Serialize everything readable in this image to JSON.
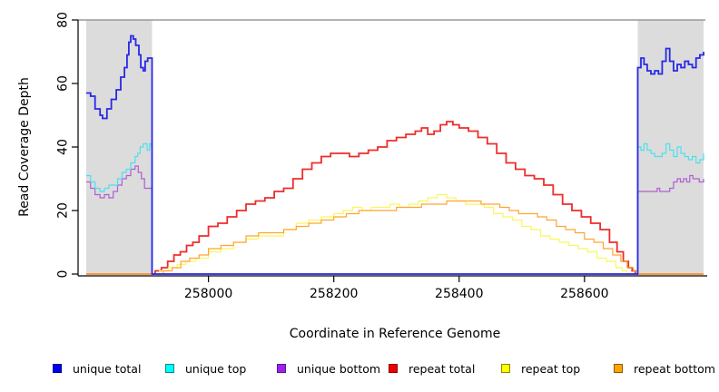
{
  "chart_data": {
    "type": "line",
    "title": "",
    "xlabel": "Coordinate in Reference Genome",
    "ylabel": "Read Coverage Depth",
    "xlim": [
      257805,
      258790
    ],
    "ylim": [
      0,
      80
    ],
    "x_ticks": [
      258000,
      258200,
      258400,
      258600
    ],
    "y_ticks": [
      0,
      20,
      40,
      60,
      80
    ],
    "grid": false,
    "legend_position": "bottom",
    "step_interpolation": true,
    "shaded_regions": [
      {
        "name": "left-masked-region",
        "x0": 257805,
        "x1": 257910,
        "color": "#dcdcdc"
      },
      {
        "name": "right-masked-region",
        "x0": 258685,
        "x1": 258790,
        "color": "#dcdcdc"
      }
    ],
    "top_boundary_line": {
      "y": 80,
      "color": "#9a9a9a"
    },
    "draw_order": [
      "repeat total",
      "repeat top",
      "repeat bottom",
      "unique bottom",
      "unique top",
      "unique total"
    ],
    "series": [
      {
        "name": "unique total",
        "color": "#2929e8",
        "width": 1.8,
        "points": [
          [
            257805,
            57
          ],
          [
            257812,
            56
          ],
          [
            257819,
            52
          ],
          [
            257827,
            50
          ],
          [
            257831,
            49
          ],
          [
            257838,
            52
          ],
          [
            257845,
            55
          ],
          [
            257853,
            58
          ],
          [
            257860,
            62
          ],
          [
            257866,
            65
          ],
          [
            257870,
            69
          ],
          [
            257873,
            73
          ],
          [
            257876,
            75
          ],
          [
            257880,
            74
          ],
          [
            257884,
            72
          ],
          [
            257889,
            69
          ],
          [
            257892,
            65
          ],
          [
            257896,
            64
          ],
          [
            257899,
            67
          ],
          [
            257903,
            68
          ],
          [
            257909,
            68
          ],
          [
            257910,
            0
          ],
          [
            258684,
            0
          ],
          [
            258685,
            65
          ],
          [
            258690,
            68
          ],
          [
            258695,
            66
          ],
          [
            258700,
            64
          ],
          [
            258706,
            63
          ],
          [
            258712,
            64
          ],
          [
            258718,
            63
          ],
          [
            258724,
            67
          ],
          [
            258730,
            71
          ],
          [
            258736,
            67
          ],
          [
            258742,
            64
          ],
          [
            258748,
            66
          ],
          [
            258754,
            65
          ],
          [
            258760,
            67
          ],
          [
            258766,
            66
          ],
          [
            258772,
            65
          ],
          [
            258778,
            68
          ],
          [
            258784,
            69
          ],
          [
            258790,
            70
          ]
        ]
      },
      {
        "name": "unique top",
        "color": "#4de0ee",
        "width": 1.2,
        "points": [
          [
            257805,
            31
          ],
          [
            257812,
            29
          ],
          [
            257819,
            27
          ],
          [
            257827,
            26
          ],
          [
            257834,
            27
          ],
          [
            257841,
            28
          ],
          [
            257848,
            28
          ],
          [
            257855,
            30
          ],
          [
            257862,
            32
          ],
          [
            257869,
            33
          ],
          [
            257876,
            35
          ],
          [
            257883,
            37
          ],
          [
            257887,
            38
          ],
          [
            257891,
            40
          ],
          [
            257896,
            41
          ],
          [
            257902,
            39
          ],
          [
            257906,
            41
          ],
          [
            257909,
            40
          ],
          [
            257910,
            0
          ],
          [
            258684,
            0
          ],
          [
            258685,
            40
          ],
          [
            258690,
            39
          ],
          [
            258695,
            41
          ],
          [
            258700,
            39
          ],
          [
            258706,
            38
          ],
          [
            258712,
            37
          ],
          [
            258718,
            37
          ],
          [
            258724,
            38
          ],
          [
            258730,
            41
          ],
          [
            258736,
            39
          ],
          [
            258742,
            37
          ],
          [
            258748,
            40
          ],
          [
            258754,
            38
          ],
          [
            258760,
            37
          ],
          [
            258766,
            36
          ],
          [
            258772,
            37
          ],
          [
            258778,
            35
          ],
          [
            258784,
            36
          ],
          [
            258790,
            38
          ]
        ]
      },
      {
        "name": "unique bottom",
        "color": "#ae5fd0",
        "width": 1.2,
        "points": [
          [
            257805,
            29
          ],
          [
            257812,
            27
          ],
          [
            257819,
            25
          ],
          [
            257827,
            24
          ],
          [
            257834,
            25
          ],
          [
            257841,
            24
          ],
          [
            257848,
            26
          ],
          [
            257855,
            28
          ],
          [
            257862,
            30
          ],
          [
            257869,
            31
          ],
          [
            257876,
            33
          ],
          [
            257883,
            34
          ],
          [
            257888,
            32
          ],
          [
            257893,
            30
          ],
          [
            257898,
            27
          ],
          [
            257909,
            27
          ],
          [
            257910,
            0
          ],
          [
            258684,
            0
          ],
          [
            258685,
            26
          ],
          [
            258700,
            26
          ],
          [
            258712,
            26
          ],
          [
            258716,
            27
          ],
          [
            258720,
            26
          ],
          [
            258730,
            26
          ],
          [
            258736,
            27
          ],
          [
            258742,
            29
          ],
          [
            258748,
            30
          ],
          [
            258753,
            29
          ],
          [
            258758,
            30
          ],
          [
            258763,
            29
          ],
          [
            258768,
            31
          ],
          [
            258773,
            30
          ],
          [
            258778,
            30
          ],
          [
            258783,
            29
          ],
          [
            258790,
            30
          ]
        ]
      },
      {
        "name": "repeat total",
        "color": "#ee2c2c",
        "width": 1.8,
        "points": [
          [
            257805,
            0
          ],
          [
            257910,
            0
          ],
          [
            257915,
            1
          ],
          [
            257925,
            2
          ],
          [
            257935,
            4
          ],
          [
            257945,
            6
          ],
          [
            257955,
            7
          ],
          [
            257965,
            9
          ],
          [
            257975,
            10
          ],
          [
            257985,
            12
          ],
          [
            258000,
            15
          ],
          [
            258015,
            16
          ],
          [
            258030,
            18
          ],
          [
            258045,
            20
          ],
          [
            258060,
            22
          ],
          [
            258075,
            23
          ],
          [
            258090,
            24
          ],
          [
            258105,
            26
          ],
          [
            258120,
            27
          ],
          [
            258135,
            30
          ],
          [
            258150,
            33
          ],
          [
            258165,
            35
          ],
          [
            258180,
            37
          ],
          [
            258195,
            38
          ],
          [
            258210,
            38
          ],
          [
            258225,
            37
          ],
          [
            258240,
            38
          ],
          [
            258255,
            39
          ],
          [
            258270,
            40
          ],
          [
            258285,
            42
          ],
          [
            258300,
            43
          ],
          [
            258315,
            44
          ],
          [
            258330,
            45
          ],
          [
            258340,
            46
          ],
          [
            258350,
            44
          ],
          [
            258360,
            45
          ],
          [
            258370,
            47
          ],
          [
            258380,
            48
          ],
          [
            258390,
            47
          ],
          [
            258400,
            46
          ],
          [
            258415,
            45
          ],
          [
            258430,
            43
          ],
          [
            258445,
            41
          ],
          [
            258460,
            38
          ],
          [
            258475,
            35
          ],
          [
            258490,
            33
          ],
          [
            258505,
            31
          ],
          [
            258520,
            30
          ],
          [
            258535,
            28
          ],
          [
            258550,
            25
          ],
          [
            258565,
            22
          ],
          [
            258580,
            20
          ],
          [
            258595,
            18
          ],
          [
            258610,
            16
          ],
          [
            258625,
            14
          ],
          [
            258640,
            10
          ],
          [
            258652,
            7
          ],
          [
            258662,
            4
          ],
          [
            258670,
            2
          ],
          [
            258676,
            1
          ],
          [
            258681,
            0
          ],
          [
            258790,
            0
          ]
        ]
      },
      {
        "name": "repeat top",
        "color": "#faf75a",
        "width": 1.2,
        "points": [
          [
            257805,
            0
          ],
          [
            257912,
            0
          ],
          [
            257922,
            1
          ],
          [
            257936,
            2
          ],
          [
            257950,
            3
          ],
          [
            257964,
            4
          ],
          [
            257980,
            5
          ],
          [
            258000,
            7
          ],
          [
            258020,
            8
          ],
          [
            258040,
            10
          ],
          [
            258060,
            11
          ],
          [
            258080,
            12
          ],
          [
            258100,
            12
          ],
          [
            258120,
            14
          ],
          [
            258140,
            16
          ],
          [
            258160,
            17
          ],
          [
            258180,
            18
          ],
          [
            258200,
            19
          ],
          [
            258215,
            20
          ],
          [
            258230,
            21
          ],
          [
            258245,
            20
          ],
          [
            258260,
            21
          ],
          [
            258275,
            21
          ],
          [
            258290,
            22
          ],
          [
            258305,
            21
          ],
          [
            258320,
            22
          ],
          [
            258335,
            23
          ],
          [
            258350,
            24
          ],
          [
            258365,
            25
          ],
          [
            258380,
            24
          ],
          [
            258395,
            23
          ],
          [
            258410,
            22
          ],
          [
            258425,
            22
          ],
          [
            258440,
            21
          ],
          [
            258455,
            19
          ],
          [
            258470,
            18
          ],
          [
            258485,
            17
          ],
          [
            258500,
            15
          ],
          [
            258515,
            14
          ],
          [
            258530,
            12
          ],
          [
            258545,
            11
          ],
          [
            258560,
            10
          ],
          [
            258575,
            9
          ],
          [
            258590,
            8
          ],
          [
            258605,
            7
          ],
          [
            258620,
            5
          ],
          [
            258635,
            4
          ],
          [
            258650,
            2
          ],
          [
            258660,
            1
          ],
          [
            258668,
            0
          ],
          [
            258790,
            0
          ]
        ]
      },
      {
        "name": "repeat bottom",
        "color": "#ffa530",
        "width": 1.2,
        "points": [
          [
            257805,
            0
          ],
          [
            257914,
            0
          ],
          [
            257928,
            1
          ],
          [
            257942,
            2
          ],
          [
            257956,
            4
          ],
          [
            257970,
            5
          ],
          [
            257985,
            6
          ],
          [
            258000,
            8
          ],
          [
            258020,
            9
          ],
          [
            258040,
            10
          ],
          [
            258060,
            12
          ],
          [
            258080,
            13
          ],
          [
            258100,
            13
          ],
          [
            258120,
            14
          ],
          [
            258140,
            15
          ],
          [
            258160,
            16
          ],
          [
            258180,
            17
          ],
          [
            258200,
            18
          ],
          [
            258220,
            19
          ],
          [
            258240,
            20
          ],
          [
            258260,
            20
          ],
          [
            258280,
            20
          ],
          [
            258300,
            21
          ],
          [
            258320,
            21
          ],
          [
            258340,
            22
          ],
          [
            258360,
            22
          ],
          [
            258380,
            23
          ],
          [
            258400,
            23
          ],
          [
            258420,
            23
          ],
          [
            258435,
            22
          ],
          [
            258450,
            22
          ],
          [
            258465,
            21
          ],
          [
            258480,
            20
          ],
          [
            258495,
            19
          ],
          [
            258510,
            19
          ],
          [
            258525,
            18
          ],
          [
            258540,
            17
          ],
          [
            258555,
            15
          ],
          [
            258570,
            14
          ],
          [
            258585,
            13
          ],
          [
            258600,
            11
          ],
          [
            258615,
            10
          ],
          [
            258630,
            8
          ],
          [
            258645,
            6
          ],
          [
            258658,
            4
          ],
          [
            258668,
            2
          ],
          [
            258678,
            1
          ],
          [
            258685,
            0
          ],
          [
            258790,
            0
          ]
        ]
      }
    ]
  },
  "legend": {
    "items": [
      {
        "label": "unique total",
        "fill": "#0000ee",
        "border": "#00008b"
      },
      {
        "label": "unique top",
        "fill": "#00ffff",
        "border": "#008b8b"
      },
      {
        "label": "unique bottom",
        "fill": "#a020f0",
        "border": "#551a8b"
      },
      {
        "label": "repeat total",
        "fill": "#ee0000",
        "border": "#8b0000"
      },
      {
        "label": "repeat top",
        "fill": "#ffff00",
        "border": "#8b8b00"
      },
      {
        "label": "repeat bottom",
        "fill": "#ffa500",
        "border": "#8b5a00"
      }
    ]
  }
}
